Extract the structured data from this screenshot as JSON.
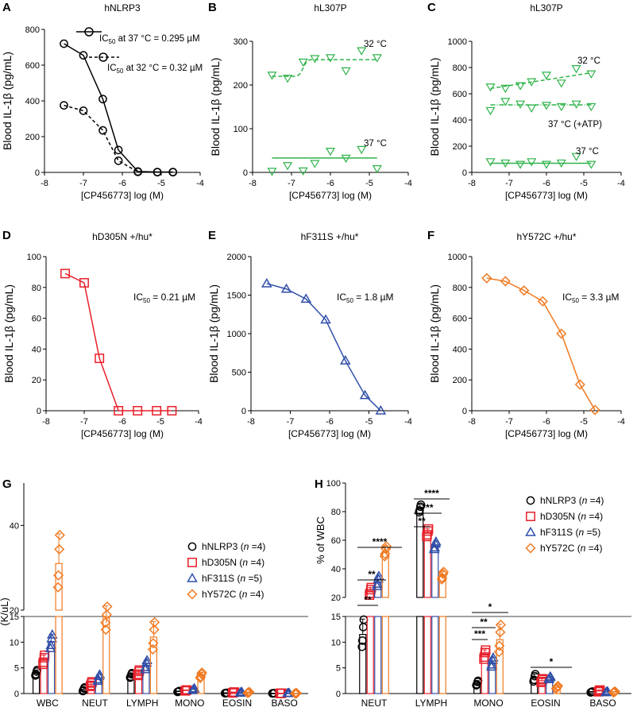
{
  "figure": {
    "colors": {
      "black": "#000000",
      "green": "#2fb34a",
      "red": "#e8202a",
      "blue": "#2f4ea8",
      "orange": "#f07a22"
    },
    "curve_axis_x_label": "[CP456773] log (M)",
    "curve_axis_y_label": "Blood IL-1β (pg/mL)",
    "curve_x_ticks": [
      "-8",
      "-7",
      "-6",
      "-5",
      "-4"
    ],
    "significance_marks": [
      "**",
      "**",
      "****",
      "**",
      "***",
      "****",
      "***",
      "**",
      "*",
      "*"
    ]
  },
  "chart_data": [
    {
      "panel": "A",
      "type": "line",
      "title": "hNLRP3",
      "xlabel": "[CP456773] log (M)",
      "ylabel": "Blood IL-1β (pg/mL)",
      "xlim": [
        -8,
        -4
      ],
      "ylim": [
        0,
        800
      ],
      "yticks": [
        "0",
        "200",
        "400",
        "600",
        "800"
      ],
      "series": [
        {
          "name": "IC50 at 37 °C = 0.295 µM",
          "x": [
            -7.5,
            -7.0,
            -6.5,
            -6.1,
            -5.6,
            -5.1,
            -4.7
          ],
          "values": [
            720,
            655,
            410,
            125,
            5,
            2,
            2
          ]
        },
        {
          "name": "IC50 at 32 °C = 0.32 µM",
          "x": [
            -7.5,
            -7.0,
            -6.5,
            -6.1,
            -5.6,
            -5.1,
            -4.7
          ],
          "values": [
            375,
            345,
            235,
            65,
            3,
            1,
            1
          ]
        }
      ],
      "legend": [
        {
          "label": "IC",
          "sub": "50",
          "rest": " at 37 °C = 0.295 µM"
        },
        {
          "label": "IC",
          "sub": "50",
          "rest": " at 32 °C = 0.32 µM"
        }
      ]
    },
    {
      "panel": "B",
      "type": "scatter",
      "title": "hL307P",
      "xlabel": "[CP456773] log (M)",
      "ylabel": "Blood IL-1β (pg/mL)",
      "xlim": [
        -8,
        -4
      ],
      "ylim": [
        0,
        300
      ],
      "yticks": [
        "0",
        "100",
        "200",
        "300"
      ],
      "series": [
        {
          "name": "32 °C",
          "x": [
            -7.5,
            -7.1,
            -6.7,
            -6.4,
            -6.0,
            -5.6,
            -5.2,
            -4.8
          ],
          "values": [
            222,
            215,
            252,
            260,
            262,
            232,
            278,
            262
          ],
          "fit": [
            220,
            258
          ]
        },
        {
          "name": "37 °C",
          "x": [
            -7.5,
            -7.1,
            -6.7,
            -6.4,
            -6.0,
            -5.6,
            -5.2,
            -4.8
          ],
          "values": [
            2,
            15,
            3,
            20,
            48,
            32,
            52,
            8
          ],
          "fit": [
            33,
            33
          ]
        }
      ],
      "labels": [
        "32 °C",
        "37 °C"
      ]
    },
    {
      "panel": "C",
      "type": "scatter",
      "title": "hL307P",
      "xlabel": "[CP456773] log (M)",
      "ylabel": "Blood IL-1β (pg/mL)",
      "xlim": [
        -8,
        -4
      ],
      "ylim": [
        0,
        1000
      ],
      "yticks": [
        "0",
        "200",
        "400",
        "600",
        "800",
        "1000"
      ],
      "series": [
        {
          "name": "32 °C",
          "x": [
            -7.5,
            -7.1,
            -6.7,
            -6.4,
            -6.0,
            -5.6,
            -5.2,
            -4.8
          ],
          "values": [
            650,
            640,
            660,
            690,
            740,
            680,
            790,
            750
          ],
          "fit": [
            640,
            760
          ]
        },
        {
          "name": "37 °C (+ATP)",
          "x": [
            -7.5,
            -7.1,
            -6.7,
            -6.4,
            -6.0,
            -5.6,
            -5.2,
            -4.8
          ],
          "values": [
            470,
            540,
            520,
            490,
            510,
            500,
            520,
            500
          ],
          "fit": [
            515,
            515
          ]
        },
        {
          "name": "37 °C",
          "x": [
            -7.5,
            -7.1,
            -6.7,
            -6.4,
            -6.0,
            -5.6,
            -5.2,
            -4.8
          ],
          "values": [
            80,
            70,
            60,
            80,
            60,
            70,
            120,
            60
          ],
          "fit": [
            70,
            70
          ]
        }
      ],
      "labels": [
        "32 °C",
        "37 °C (+ATP)",
        "37 °C"
      ]
    },
    {
      "panel": "D",
      "type": "line",
      "title": "hD305N +/hu*",
      "xlabel": "[CP456773] log (M)",
      "ylabel": "Blood IL-1β (pg/mL)",
      "xlim": [
        -8,
        -4
      ],
      "ylim": [
        0,
        100
      ],
      "yticks": [
        "0",
        "20",
        "40",
        "60",
        "80",
        "100"
      ],
      "series": [
        {
          "name": "hD305N +/hu*",
          "x": [
            -7.5,
            -7.0,
            -6.6,
            -6.1,
            -5.6,
            -5.1,
            -4.7
          ],
          "values": [
            89,
            83,
            34,
            0,
            0,
            0,
            0
          ]
        }
      ],
      "annotation": {
        "label": "IC",
        "sub": "50",
        "rest": " = 0.21 µM"
      }
    },
    {
      "panel": "E",
      "type": "line",
      "title": "hF311S +/hu*",
      "xlabel": "[CP456773] log (M)",
      "ylabel": "Blood IL-1β (pg/mL)",
      "xlim": [
        -8,
        -4
      ],
      "ylim": [
        0,
        2000
      ],
      "yticks": [
        "0",
        "500",
        "1000",
        "1500",
        "2000"
      ],
      "series": [
        {
          "name": "hF311S +/hu*",
          "x": [
            -7.6,
            -7.1,
            -6.6,
            -6.1,
            -5.6,
            -5.1,
            -4.7
          ],
          "values": [
            1650,
            1580,
            1450,
            1180,
            650,
            200,
            0
          ]
        }
      ],
      "annotation": {
        "label": "IC",
        "sub": "50",
        "rest": " = 1.8 µM"
      }
    },
    {
      "panel": "F",
      "type": "line",
      "title": "hY572C +/hu*",
      "xlabel": "[CP456773] log (M)",
      "ylabel": "Blood IL-1β (pg/mL)",
      "xlim": [
        -8,
        -4
      ],
      "ylim": [
        0,
        1000
      ],
      "yticks": [
        "0",
        "200",
        "400",
        "600",
        "800",
        "1000"
      ],
      "series": [
        {
          "name": "hY572C +/hu*",
          "x": [
            -7.6,
            -7.1,
            -6.6,
            -6.1,
            -5.6,
            -5.1,
            -4.7
          ],
          "values": [
            860,
            840,
            780,
            710,
            500,
            170,
            5
          ]
        }
      ],
      "annotation": {
        "label": "IC",
        "sub": "50",
        "rest": " = 3.3 µM"
      }
    },
    {
      "panel": "G",
      "type": "bar",
      "ylabel": "(K/uL)",
      "categories": [
        "WBC",
        "NEUT",
        "LYMPH",
        "MONO",
        "EOSIN",
        "BASO"
      ],
      "lower_ticks": [
        "0",
        "5",
        "10",
        "15"
      ],
      "upper_ticks": [
        "20",
        "40"
      ],
      "series": [
        {
          "name": "hNLRP3",
          "n": "4",
          "values": [
            4,
            0.8,
            3.5,
            0.4,
            0.1,
            0.05
          ],
          "errors": [
            0.6,
            0.4,
            0.5,
            0.1,
            0.05,
            0.02
          ]
        },
        {
          "name": "hD305N",
          "n": "4",
          "values": [
            6.5,
            1.8,
            4,
            0.6,
            0.2,
            0.05
          ],
          "errors": [
            1,
            0.5,
            0.6,
            0.1,
            0.1,
            0.02
          ]
        },
        {
          "name": "hF311S",
          "n": "5",
          "values": [
            10,
            3,
            5.5,
            0.8,
            0.2,
            0.05
          ],
          "errors": [
            1.5,
            0.7,
            1,
            0.2,
            0.1,
            0.02
          ]
        },
        {
          "name": "hY572C",
          "n": "4",
          "values": [
            31,
            17,
            11,
            3.5,
            0.2,
            0.05
          ],
          "errors": [
            7,
            4,
            3,
            0.6,
            0.1,
            0.02
          ]
        }
      ]
    },
    {
      "panel": "H",
      "type": "bar",
      "ylabel": "% of WBC",
      "categories": [
        "NEUT",
        "LYMPH",
        "MONO",
        "EOSIN",
        "BASO"
      ],
      "lower_ticks": [
        "0",
        "5",
        "10",
        "15"
      ],
      "upper_ticks": [
        "20",
        "40",
        "60",
        "80",
        "100"
      ],
      "series": [
        {
          "name": "hNLRP3",
          "n": "4",
          "values": [
            11.5,
            82,
            2,
            3,
            0.3
          ],
          "errors": [
            3,
            3,
            0.5,
            0.8,
            0.1
          ]
        },
        {
          "name": "hD305N",
          "n": "4",
          "values": [
            24,
            65,
            7.5,
            2.5,
            0.5
          ],
          "errors": [
            3,
            3,
            1,
            0.4,
            0.2
          ]
        },
        {
          "name": "hF311S",
          "n": "5",
          "values": [
            31,
            56,
            6,
            3,
            0.3
          ],
          "errors": [
            4,
            3,
            1,
            0.3,
            0.1
          ]
        },
        {
          "name": "hY572C",
          "n": "4",
          "values": [
            52,
            35,
            10.5,
            1.2,
            0.3
          ],
          "errors": [
            4,
            3,
            3,
            0.3,
            0.1
          ]
        }
      ]
    }
  ]
}
